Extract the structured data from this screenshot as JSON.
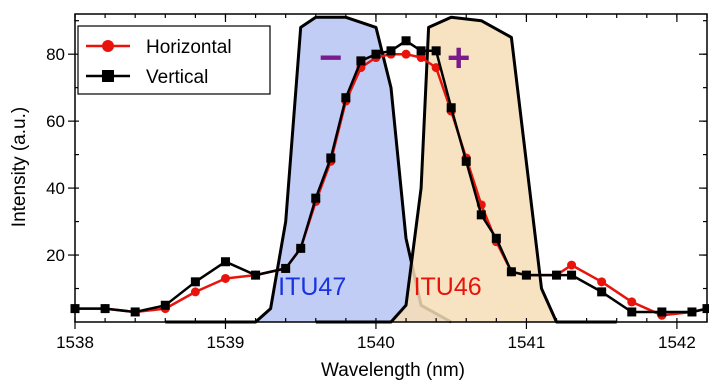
{
  "chart_data": {
    "type": "line",
    "xlabel": "Wavelength (nm)",
    "ylabel": "Intensity (a.u.)",
    "xlim": [
      1538,
      1542.2
    ],
    "ylim": [
      0,
      92
    ],
    "x_ticks": [
      1538,
      1539,
      1540,
      1541,
      1542
    ],
    "x_tick_labels": [
      "1538",
      "1539",
      "1540",
      "1541",
      "1542"
    ],
    "y_ticks": [
      20,
      40,
      60,
      80
    ],
    "y_tick_labels": [
      "20",
      "40",
      "60",
      "80"
    ],
    "legend_position": "top-left",
    "series": [
      {
        "name": "Horizontal",
        "color": "#e8140c",
        "marker": "circle",
        "points": [
          [
            1538.0,
            4
          ],
          [
            1538.2,
            4
          ],
          [
            1538.4,
            3
          ],
          [
            1538.6,
            4
          ],
          [
            1538.8,
            9
          ],
          [
            1539.0,
            13
          ],
          [
            1539.2,
            14
          ],
          [
            1539.4,
            16
          ],
          [
            1539.5,
            22
          ],
          [
            1539.6,
            36
          ],
          [
            1539.7,
            48
          ],
          [
            1539.8,
            66
          ],
          [
            1539.9,
            76
          ],
          [
            1540.0,
            79
          ],
          [
            1540.1,
            80
          ],
          [
            1540.2,
            80
          ],
          [
            1540.3,
            79
          ],
          [
            1540.4,
            76
          ],
          [
            1540.5,
            63
          ],
          [
            1540.6,
            49
          ],
          [
            1540.7,
            35
          ],
          [
            1540.8,
            24
          ],
          [
            1540.9,
            15
          ],
          [
            1541.0,
            14
          ],
          [
            1541.2,
            14
          ],
          [
            1541.3,
            17
          ],
          [
            1541.5,
            12
          ],
          [
            1541.7,
            6
          ],
          [
            1541.9,
            2
          ],
          [
            1542.1,
            3
          ],
          [
            1542.2,
            4
          ]
        ]
      },
      {
        "name": "Vertical",
        "color": "#000000",
        "marker": "square",
        "points": [
          [
            1538.0,
            4
          ],
          [
            1538.2,
            4
          ],
          [
            1538.4,
            3
          ],
          [
            1538.6,
            5
          ],
          [
            1538.8,
            12
          ],
          [
            1539.0,
            18
          ],
          [
            1539.2,
            14
          ],
          [
            1539.4,
            16
          ],
          [
            1539.5,
            22
          ],
          [
            1539.6,
            37
          ],
          [
            1539.7,
            49
          ],
          [
            1539.8,
            67
          ],
          [
            1539.9,
            78
          ],
          [
            1540.0,
            80
          ],
          [
            1540.1,
            81
          ],
          [
            1540.2,
            84
          ],
          [
            1540.3,
            81
          ],
          [
            1540.4,
            81
          ],
          [
            1540.5,
            64
          ],
          [
            1540.6,
            48
          ],
          [
            1540.7,
            32
          ],
          [
            1540.8,
            25
          ],
          [
            1540.9,
            15
          ],
          [
            1541.0,
            14
          ],
          [
            1541.2,
            14
          ],
          [
            1541.3,
            14
          ],
          [
            1541.5,
            9
          ],
          [
            1541.7,
            3
          ],
          [
            1541.9,
            3
          ],
          [
            1542.1,
            3
          ],
          [
            1542.2,
            4
          ]
        ]
      }
    ],
    "filter_bands": [
      {
        "label": "ITU47",
        "sign": "−",
        "fill": "#b7c4f4",
        "label_color": "#1833e0",
        "sign_color": "#7b1a8c",
        "label_at": [
          1539.35,
          8
        ],
        "sign_at": [
          1539.7,
          75
        ],
        "outline": [
          [
            1538.6,
            0
          ],
          [
            1539.2,
            0
          ],
          [
            1539.3,
            4
          ],
          [
            1539.4,
            30
          ],
          [
            1539.5,
            88
          ],
          [
            1539.6,
            91
          ],
          [
            1539.8,
            91
          ],
          [
            1540.0,
            88
          ],
          [
            1540.1,
            70
          ],
          [
            1540.2,
            25
          ],
          [
            1540.3,
            5
          ],
          [
            1540.5,
            0
          ]
        ]
      },
      {
        "label": "ITU46",
        "sign": "+",
        "fill": "#f6ddb6",
        "label_color": "#e8140c",
        "sign_color": "#7b1a8c",
        "label_at": [
          1540.25,
          8
        ],
        "sign_at": [
          1540.55,
          75
        ],
        "outline": [
          [
            1539.6,
            0
          ],
          [
            1540.1,
            0
          ],
          [
            1540.2,
            5
          ],
          [
            1540.3,
            40
          ],
          [
            1540.35,
            88
          ],
          [
            1540.5,
            91
          ],
          [
            1540.7,
            90
          ],
          [
            1540.9,
            85
          ],
          [
            1541.1,
            10
          ],
          [
            1541.2,
            0
          ],
          [
            1541.6,
            0
          ]
        ]
      }
    ]
  }
}
